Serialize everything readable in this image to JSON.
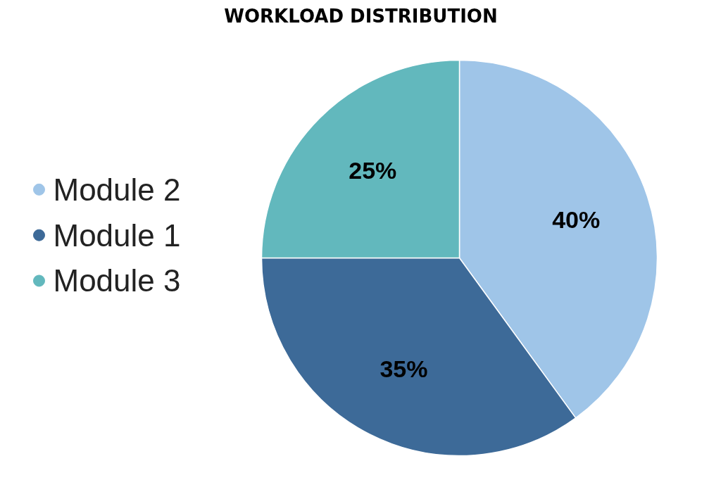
{
  "chart_data": {
    "type": "pie",
    "title": "WORKLOAD DISTRIBUTION",
    "categories": [
      "Module 2",
      "Module 1",
      "Module 3"
    ],
    "values": [
      40,
      35,
      25
    ],
    "colors": [
      "#9fc5e8",
      "#3d6a98",
      "#62b8bd"
    ],
    "value_labels": [
      "40%",
      "35%",
      "25%"
    ],
    "legend": "left"
  }
}
